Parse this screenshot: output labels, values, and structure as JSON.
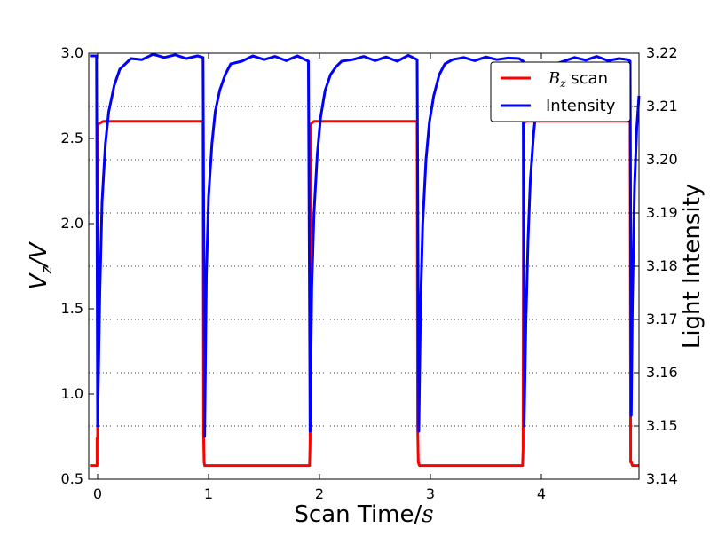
{
  "chart_data": {
    "type": "line",
    "xlabel": "Scan Time/s",
    "ylabel_left": "Vz/V",
    "ylabel_right": "Light Intensity",
    "xlim": [
      -0.08,
      4.88
    ],
    "ylim_left": [
      0.5,
      3.0
    ],
    "ylim_right": [
      3.14,
      3.22
    ],
    "xticks": [
      "0",
      "1",
      "2",
      "3",
      "4"
    ],
    "yticks_left": [
      "0.5",
      "1.0",
      "1.5",
      "2.0",
      "2.5",
      "3.0"
    ],
    "yticks_right": [
      "3.14",
      "3.15",
      "3.16",
      "3.17",
      "3.18",
      "3.19",
      "3.20",
      "3.21",
      "3.22"
    ],
    "grid": "horizontal dotted at right-axis ticks",
    "legend_position": "top-right",
    "series": [
      {
        "name": "Bz scan",
        "axis": "left",
        "color": "#ff0000",
        "x": [
          -0.07,
          -0.005,
          -0.005,
          0.0,
          0.0,
          0.02,
          0.05,
          0.1,
          0.3,
          0.6,
          0.95,
          0.955,
          0.96,
          0.965,
          0.98,
          1.2,
          1.5,
          1.91,
          1.915,
          1.92,
          1.93,
          1.95,
          2.0,
          2.3,
          2.6,
          2.88,
          2.885,
          2.89,
          2.9,
          2.92,
          3.2,
          3.5,
          3.83,
          3.835,
          3.84,
          3.845,
          3.86,
          4.2,
          4.5,
          4.8,
          4.805,
          4.81,
          4.82,
          4.84,
          4.88
        ],
        "y": [
          0.58,
          0.58,
          0.74,
          0.74,
          2.58,
          2.59,
          2.6,
          2.6,
          2.6,
          2.6,
          2.6,
          0.76,
          0.6,
          0.58,
          0.58,
          0.58,
          0.58,
          0.58,
          0.72,
          2.58,
          2.59,
          2.6,
          2.6,
          2.6,
          2.6,
          2.6,
          0.8,
          0.6,
          0.58,
          0.58,
          0.58,
          0.58,
          0.58,
          0.68,
          2.58,
          2.59,
          2.6,
          2.6,
          2.6,
          2.6,
          0.6,
          0.6,
          0.58,
          0.58,
          0.58
        ]
      },
      {
        "name": "Intensity",
        "axis": "right",
        "color": "#0000ff",
        "x": [
          -0.07,
          -0.01,
          0.0,
          0.02,
          0.04,
          0.07,
          0.1,
          0.15,
          0.2,
          0.3,
          0.4,
          0.5,
          0.6,
          0.7,
          0.8,
          0.9,
          0.95,
          0.965,
          0.98,
          1.0,
          1.03,
          1.06,
          1.1,
          1.15,
          1.2,
          1.3,
          1.4,
          1.5,
          1.6,
          1.7,
          1.8,
          1.9,
          1.915,
          1.93,
          1.95,
          1.98,
          2.01,
          2.05,
          2.1,
          2.15,
          2.2,
          2.3,
          2.4,
          2.5,
          2.6,
          2.7,
          2.8,
          2.88,
          2.895,
          2.91,
          2.93,
          2.96,
          2.99,
          3.03,
          3.08,
          3.13,
          3.2,
          3.3,
          3.4,
          3.5,
          3.6,
          3.7,
          3.8,
          3.835,
          3.845,
          3.86,
          3.88,
          3.9,
          3.93,
          3.96,
          4.0,
          4.1,
          4.2,
          4.3,
          4.4,
          4.5,
          4.6,
          4.7,
          4.78,
          4.8,
          4.81,
          4.82,
          4.84,
          4.86,
          4.88
        ],
        "y": [
          3.2195,
          3.2195,
          3.15,
          3.175,
          3.192,
          3.203,
          3.209,
          3.214,
          3.217,
          3.219,
          3.2188,
          3.2198,
          3.2192,
          3.2197,
          3.219,
          3.2195,
          3.2192,
          3.148,
          3.178,
          3.193,
          3.203,
          3.209,
          3.213,
          3.216,
          3.218,
          3.2185,
          3.2195,
          3.2188,
          3.2194,
          3.2186,
          3.2195,
          3.2185,
          3.149,
          3.176,
          3.19,
          3.201,
          3.208,
          3.213,
          3.216,
          3.2175,
          3.2185,
          3.2188,
          3.2194,
          3.2186,
          3.2193,
          3.2185,
          3.2196,
          3.2188,
          3.149,
          3.172,
          3.188,
          3.2,
          3.207,
          3.212,
          3.216,
          3.218,
          3.2188,
          3.2192,
          3.2186,
          3.2193,
          3.2188,
          3.2191,
          3.219,
          3.2185,
          3.15,
          3.169,
          3.185,
          3.196,
          3.205,
          3.211,
          3.215,
          3.2178,
          3.2185,
          3.2192,
          3.2187,
          3.2194,
          3.2186,
          3.219,
          3.2188,
          3.2185,
          3.152,
          3.172,
          3.195,
          3.206,
          3.212
        ]
      }
    ],
    "legend": {
      "entries": [
        {
          "label_prefix": "B",
          "label_sub": "z",
          "label_suffix": " scan",
          "color": "#ff0000"
        },
        {
          "label_prefix": "Intensity",
          "label_sub": "",
          "label_suffix": "",
          "color": "#0000ff"
        }
      ]
    }
  }
}
